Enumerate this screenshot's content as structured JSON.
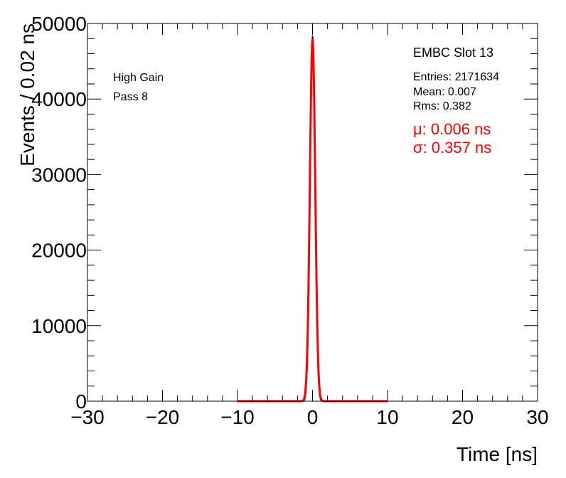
{
  "chart_data": {
    "type": "histogram",
    "title": "",
    "xlabel": "Time [ns]",
    "ylabel": "Events / 0.02 ns",
    "xlim": [
      -30,
      30
    ],
    "ylim": [
      0,
      50000
    ],
    "x_ticks": [
      -30,
      -20,
      -10,
      0,
      10,
      20,
      30
    ],
    "x_tick_labels": [
      "−30",
      "−20",
      "−10",
      "0",
      "10",
      "20",
      "30"
    ],
    "y_ticks": [
      0,
      10000,
      20000,
      30000,
      40000,
      50000
    ],
    "y_tick_labels": [
      "0",
      "10000",
      "20000",
      "30000",
      "40000",
      "50000"
    ],
    "histogram": {
      "entries": 2171634,
      "mean": 0.007,
      "rms": 0.382,
      "peak_x": 0.0,
      "peak_value": 48300,
      "color": "#000000"
    },
    "fit": {
      "function": "gaussian",
      "mu": 0.006,
      "sigma": 0.357,
      "amplitude": 47800,
      "range": [
        -10,
        10
      ],
      "color": "#ff0000"
    },
    "annotations": {
      "left": [
        "High Gain",
        "Pass 8"
      ],
      "stats_title": "EMBC Slot 13",
      "stats": [
        "Entries: 2171634",
        "Mean: 0.007",
        "Rms: 0.382"
      ],
      "fit_results": [
        "μ: 0.006 ns",
        "σ: 0.357 ns"
      ]
    }
  }
}
